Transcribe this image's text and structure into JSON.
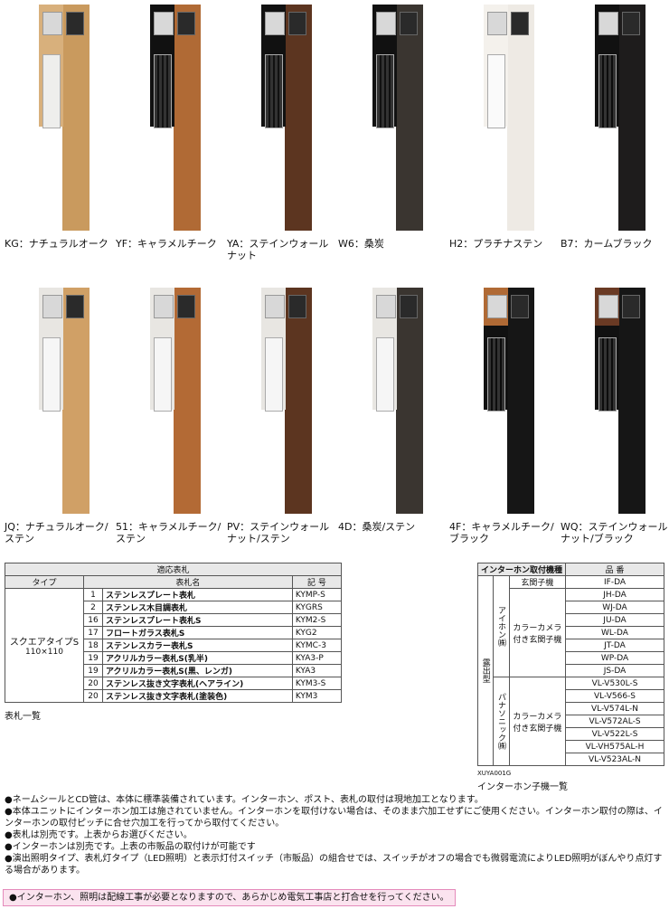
{
  "variants": [
    "KG：ナチュラルオーク",
    "YF：キャラメルチーク",
    "YA：ステインウォールナット",
    "W6：桑炭",
    "H2：プラチナステン",
    "B7：カームブラック",
    "JQ：ナチュラルオーク/ステン",
    "51：キャラメルチーク/ステン",
    "PV：ステインウォールナット/ステン",
    "4D：桑炭/ステン",
    "4F：キャラメルチーク/ブラック",
    "WQ：ステインウォールナット/ブラック"
  ],
  "name_table": {
    "title": "適応表札",
    "headers": [
      "タイプ",
      "表札名",
      "記 号"
    ],
    "type_name": "スクエアタイプS",
    "type_size": "110×110",
    "rows": [
      [
        "1",
        "ステンレスプレート表札",
        "KYMP-S"
      ],
      [
        "2",
        "ステンレス木目調表札",
        "KYGRS"
      ],
      [
        "16",
        "ステンレスプレート表札S",
        "KYM2-S"
      ],
      [
        "17",
        "フロートガラス表札S",
        "KYG2"
      ],
      [
        "18",
        "ステンレスカラー表札S",
        "KYMC-3"
      ],
      [
        "19",
        "アクリルカラー表札S(乳半)",
        "KYA3-P"
      ],
      [
        "19",
        "アクリルカラー表札S(黒、レンガ)",
        "KYA3"
      ],
      [
        "20",
        "ステンレス抜き文字表札(ヘアライン)",
        "KYM3-S"
      ],
      [
        "20",
        "ステンレス抜き文字表札(塗装色)",
        "KYM3"
      ]
    ],
    "caption": "表札一覧"
  },
  "intercom_table": {
    "title": "インターホン取付機種",
    "model_header": "品 番",
    "group": "露出型",
    "makers": [
      {
        "name": "アイホン㈱",
        "units": [
          {
            "label": "玄関子機",
            "models": [
              "IF-DA"
            ]
          },
          {
            "label": "カラーカメラ付き玄関子機",
            "models": [
              "JH-DA",
              "WJ-DA",
              "JU-DA",
              "WL-DA",
              "JT-DA",
              "WP-DA",
              "JS-DA"
            ]
          }
        ]
      },
      {
        "name": "パナソニック㈱",
        "units": [
          {
            "label": "カラーカメラ付き玄関子機",
            "models": [
              "VL-V530L-S",
              "VL-V566-S",
              "VL-V574L-N",
              "VL-V572AL-S",
              "VL-V522L-S",
              "VL-VH575AL-H",
              "VL-V523AL-N"
            ]
          }
        ]
      }
    ],
    "code": "XUYA001G",
    "caption": "インターホン子機一覧"
  },
  "notes": [
    "●ネームシールとCD管は、本体に標準装備されています。インターホン、ポスト、表札の取付は現地加工となります。",
    "●本体ユニットにインターホン加工は施されていません。インターホンを取付けない場合は、そのまま穴加工せずにご使用ください。インターホン取付の際は、インターホンの取付ピッチに合せ穴加工を行ってから取付てください。",
    "●表札は別売です。上表からお選びください。",
    "●インターホンは別売です。上表の市販品の取付けが可能です",
    "●演出照明タイプ、表札灯タイプ（LED照明）と表示灯付スイッチ（市販品）の組合せでは、スイッチがオフの場合でも微弱電流によりLED照明がぼんやり点灯する場合があります。"
  ],
  "warning": "●インターホン、照明は配線工事が必要となりますので、あらかじめ電気工事店と打合せを行ってください。"
}
